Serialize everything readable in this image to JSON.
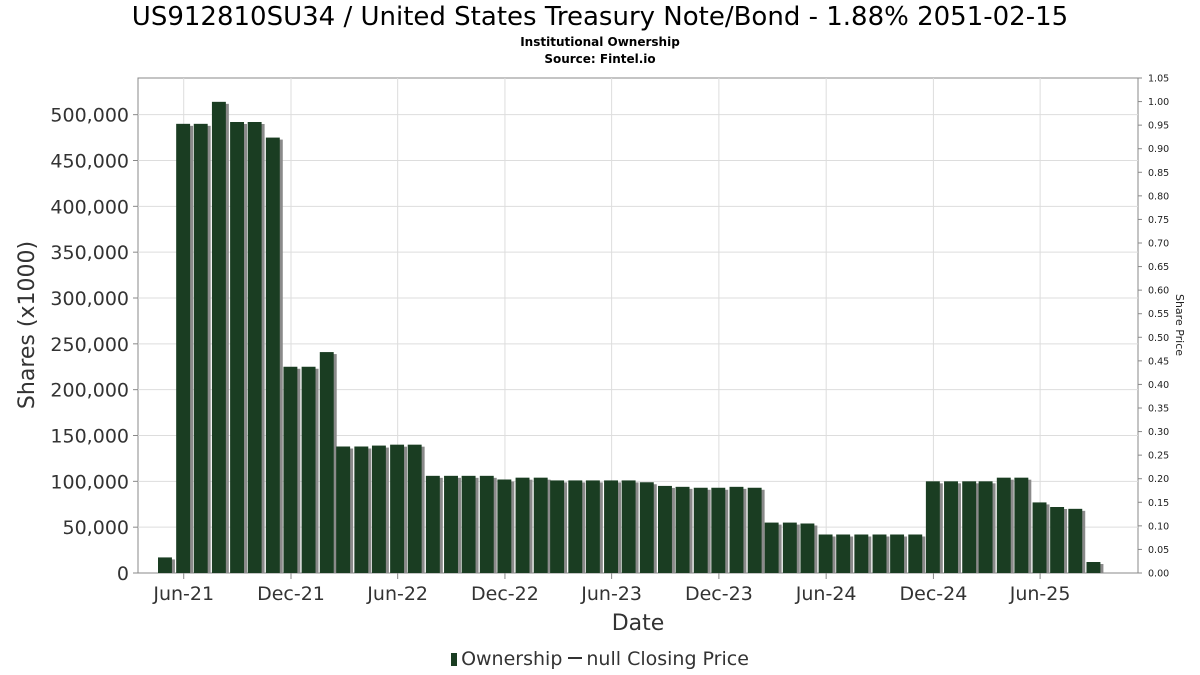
{
  "title": "US912810SU34 / United States Treasury Note/Bond - 1.88% 2051-02-15",
  "subtitle": "Institutional Ownership",
  "source": "Source: Fintel.io",
  "legend": {
    "ownership": "Ownership",
    "price": "null Closing Price"
  },
  "colors": {
    "bar": "#1a3d22",
    "bar_shadow": "#8a8a8a",
    "grid": "#dddddd",
    "axis": "#888888"
  },
  "chart_data": {
    "type": "bar",
    "xlabel": "Date",
    "ylabel": "Shares (x1000)",
    "y2label": "Share Price",
    "ylim": [
      0,
      540000
    ],
    "y2lim": [
      0,
      1.05
    ],
    "yticks": [
      0,
      50000,
      100000,
      150000,
      200000,
      250000,
      300000,
      350000,
      400000,
      450000,
      500000
    ],
    "ytick_labels": [
      "0",
      "50,000",
      "100,000",
      "150,000",
      "200,000",
      "250,000",
      "300,000",
      "350,000",
      "400,000",
      "450,000",
      "500,000"
    ],
    "y2tick_labels": [
      "0.00",
      "0.05",
      "0.10",
      "0.15",
      "0.20",
      "0.25",
      "0.30",
      "0.35",
      "0.40",
      "0.45",
      "0.50",
      "0.55",
      "0.60",
      "0.65",
      "0.70",
      "0.75",
      "0.80",
      "0.85",
      "0.90",
      "0.95",
      "1.00",
      "1.05"
    ],
    "xlim": [
      "2021-03-15",
      "2025-11-15"
    ],
    "xticks": [
      {
        "label": "Jun-21",
        "date": "2021-06-01"
      },
      {
        "label": "Dec-21",
        "date": "2021-12-01"
      },
      {
        "label": "Jun-22",
        "date": "2022-06-01"
      },
      {
        "label": "Dec-22",
        "date": "2022-12-01"
      },
      {
        "label": "Jun-23",
        "date": "2023-06-01"
      },
      {
        "label": "Dec-23",
        "date": "2023-12-01"
      },
      {
        "label": "Jun-24",
        "date": "2024-06-01"
      },
      {
        "label": "Dec-24",
        "date": "2024-12-01"
      },
      {
        "label": "Jun-25",
        "date": "2025-06-01"
      }
    ],
    "grid": true,
    "legend_position": "bottom",
    "series": [
      {
        "name": "Ownership",
        "points": [
          {
            "date": "2021-04-30",
            "value": 17000
          },
          {
            "date": "2021-05-31",
            "value": 490000
          },
          {
            "date": "2021-06-30",
            "value": 490000
          },
          {
            "date": "2021-07-31",
            "value": 514000
          },
          {
            "date": "2021-08-31",
            "value": 492000
          },
          {
            "date": "2021-09-30",
            "value": 492000
          },
          {
            "date": "2021-10-31",
            "value": 475000
          },
          {
            "date": "2021-11-30",
            "value": 225000
          },
          {
            "date": "2021-12-31",
            "value": 225000
          },
          {
            "date": "2022-01-31",
            "value": 241000
          },
          {
            "date": "2022-02-28",
            "value": 138000
          },
          {
            "date": "2022-03-31",
            "value": 138000
          },
          {
            "date": "2022-04-30",
            "value": 139000
          },
          {
            "date": "2022-05-31",
            "value": 140000
          },
          {
            "date": "2022-06-30",
            "value": 140000
          },
          {
            "date": "2022-07-31",
            "value": 106000
          },
          {
            "date": "2022-08-31",
            "value": 106000
          },
          {
            "date": "2022-09-30",
            "value": 106000
          },
          {
            "date": "2022-10-31",
            "value": 106000
          },
          {
            "date": "2022-11-30",
            "value": 102000
          },
          {
            "date": "2022-12-31",
            "value": 104000
          },
          {
            "date": "2023-01-31",
            "value": 104000
          },
          {
            "date": "2023-02-28",
            "value": 101000
          },
          {
            "date": "2023-03-31",
            "value": 101000
          },
          {
            "date": "2023-04-30",
            "value": 101000
          },
          {
            "date": "2023-05-31",
            "value": 101000
          },
          {
            "date": "2023-06-30",
            "value": 101000
          },
          {
            "date": "2023-07-31",
            "value": 99000
          },
          {
            "date": "2023-08-31",
            "value": 95000
          },
          {
            "date": "2023-09-30",
            "value": 94000
          },
          {
            "date": "2023-10-31",
            "value": 93000
          },
          {
            "date": "2023-11-30",
            "value": 93000
          },
          {
            "date": "2023-12-31",
            "value": 94000
          },
          {
            "date": "2024-01-31",
            "value": 93000
          },
          {
            "date": "2024-02-29",
            "value": 55000
          },
          {
            "date": "2024-03-31",
            "value": 55000
          },
          {
            "date": "2024-04-30",
            "value": 54000
          },
          {
            "date": "2024-05-31",
            "value": 42000
          },
          {
            "date": "2024-06-30",
            "value": 42000
          },
          {
            "date": "2024-07-31",
            "value": 42000
          },
          {
            "date": "2024-08-31",
            "value": 42000
          },
          {
            "date": "2024-09-30",
            "value": 42000
          },
          {
            "date": "2024-10-31",
            "value": 42000
          },
          {
            "date": "2024-11-30",
            "value": 100000
          },
          {
            "date": "2024-12-31",
            "value": 100000
          },
          {
            "date": "2025-01-31",
            "value": 100000
          },
          {
            "date": "2025-02-28",
            "value": 100000
          },
          {
            "date": "2025-03-31",
            "value": 104000
          },
          {
            "date": "2025-04-30",
            "value": 104000
          },
          {
            "date": "2025-05-31",
            "value": 77000
          },
          {
            "date": "2025-06-30",
            "value": 72000
          },
          {
            "date": "2025-07-31",
            "value": 70000
          },
          {
            "date": "2025-08-31",
            "value": 12000
          }
        ]
      }
    ]
  }
}
